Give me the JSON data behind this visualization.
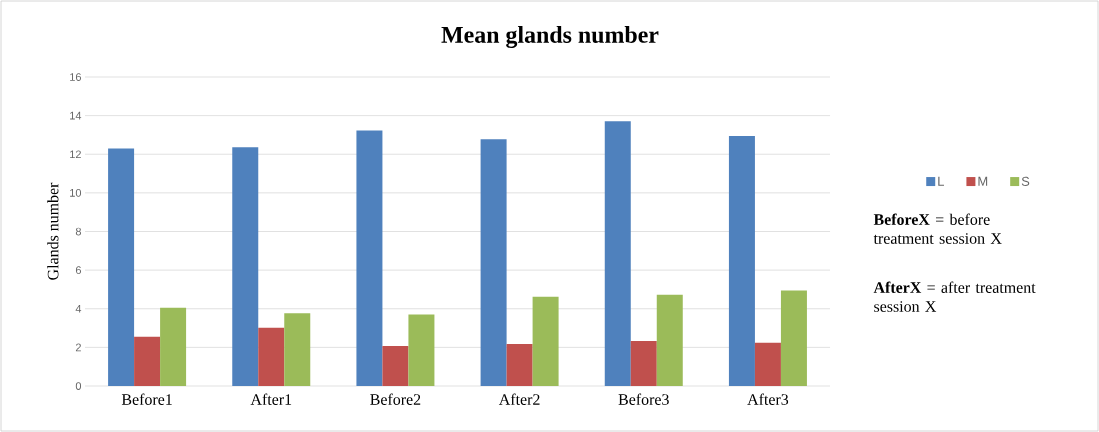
{
  "chart_data": {
    "type": "bar",
    "title": "Mean glands number",
    "ylabel": "Glands number",
    "categories": [
      "Before1",
      "After1",
      "Before2",
      "After2",
      "Before3",
      "After3"
    ],
    "series": [
      {
        "name": "L",
        "color": "#4f81bd",
        "values": [
          12.3,
          12.36,
          13.23,
          12.78,
          13.71,
          12.95
        ]
      },
      {
        "name": "M",
        "color": "#c0504d",
        "values": [
          2.55,
          3.02,
          2.07,
          2.18,
          2.33,
          2.24
        ]
      },
      {
        "name": "S",
        "color": "#9bbb59",
        "values": [
          4.05,
          3.77,
          3.7,
          4.62,
          4.72,
          4.95
        ]
      }
    ],
    "ylim": [
      0,
      16
    ],
    "yticks": [
      0,
      2,
      4,
      6,
      8,
      10,
      12,
      14,
      16
    ],
    "grid": "y",
    "legend": "right",
    "annotations": [
      "**BeforeX** = before treatment session X",
      "**AfterX** = after treatment session X"
    ]
  }
}
